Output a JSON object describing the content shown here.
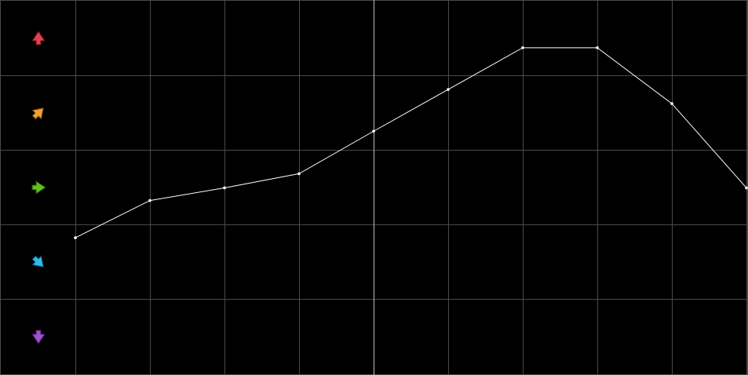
{
  "chart_data": {
    "type": "line",
    "x": [
      1,
      2,
      3,
      4,
      5,
      6,
      7,
      8,
      9,
      10
    ],
    "series": [
      {
        "color": "#ffffff",
        "values": [
          1.82,
          2.32,
          2.49,
          2.68,
          3.25,
          3.81,
          4.37,
          4.37,
          3.62,
          2.49
        ]
      }
    ],
    "xlim": [
      0,
      10
    ],
    "xticks": [
      1,
      2,
      3,
      4,
      5,
      6,
      7,
      8,
      9,
      10
    ],
    "ylim": [
      0,
      5
    ],
    "yticks": [
      1,
      2,
      3,
      4
    ],
    "grid": true,
    "highlight_x": 5
  }
}
